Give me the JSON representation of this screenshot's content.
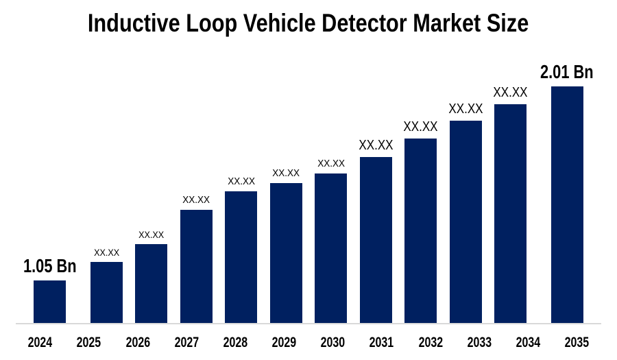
{
  "title": "Inductive Loop Vehicle Detector Market Size",
  "colors": {
    "bar": "#002060",
    "axis_line": "#D9D9D9",
    "text": "#000000",
    "background": "#FFFFFF"
  },
  "chart_data": {
    "type": "bar",
    "title": "Inductive Loop Vehicle Detector Market Size",
    "categories": [
      "2024",
      "2025",
      "2026",
      "2027",
      "2028",
      "2029",
      "2030",
      "2031",
      "2032",
      "2033",
      "2034",
      "2035"
    ],
    "values": [
      1.05,
      1.14,
      1.23,
      1.4,
      1.49,
      1.53,
      1.58,
      1.66,
      1.75,
      1.84,
      1.92,
      2.01
    ],
    "bar_labels": [
      "1.05 Bn",
      "XX.XX",
      "XX.XX",
      "XX.XX",
      "XX.XX",
      "XX.XX",
      "XX.XX",
      "XX.XX",
      "XX.XX",
      "XX.XX",
      "XX.XX",
      "2.01 Bn"
    ],
    "label_styles": [
      "end",
      "sm",
      "sm",
      "md",
      "md",
      "md",
      "md",
      "lg",
      "lg",
      "lg",
      "lg",
      "end"
    ],
    "unit": "Bn",
    "first_value_label": "1.05 Bn",
    "last_value_label": "2.01 Bn",
    "xlabel": "",
    "ylabel": "",
    "ylim": [
      0.84,
      2.1
    ],
    "y_axis_visible": false,
    "grid": false,
    "legend": false,
    "values_note": "Intermediate bar values are masked as XX.XX in the figure; numbers estimated from bar heights."
  }
}
